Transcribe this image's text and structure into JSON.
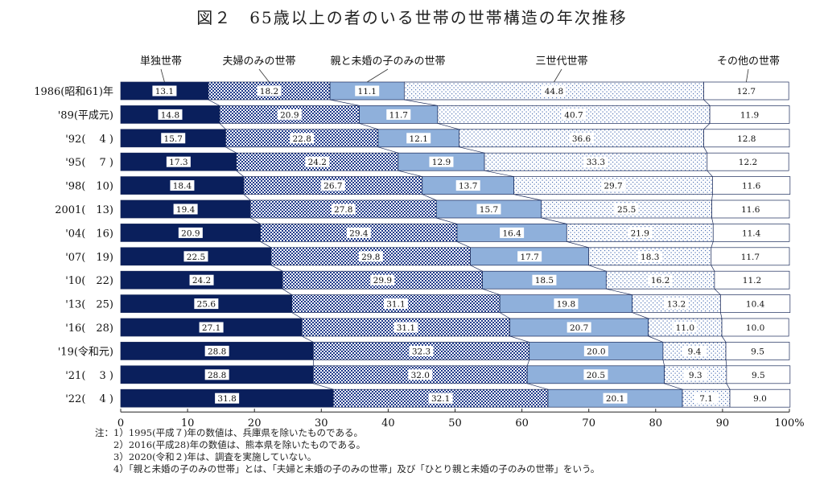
{
  "title": "図２　65歳以上の者のいる世帯の世帯構造の年次推移",
  "chart_data": {
    "type": "bar",
    "stacked": true,
    "orientation": "horizontal",
    "percent_axis_max_label": "100%",
    "x_ticks": [
      "0",
      "10",
      "20",
      "30",
      "40",
      "50",
      "60",
      "70",
      "80",
      "90",
      "100%"
    ],
    "xlim": [
      0,
      100
    ],
    "categories": [
      "1986(昭和61)年",
      "'89(平成元)",
      "'92(　 4 )",
      "'95(　 7 )",
      "'98(　10)",
      "2001(　13)",
      "'04(　16)",
      "'07(　19)",
      "'10(　22)",
      "'13(　25)",
      "'16(　28)",
      "'19(令和元)",
      "'21(　 3 )",
      "'22(　 4 )"
    ],
    "series": [
      {
        "name": "単独世帯",
        "color": "#0a1f5c",
        "pattern": "solid",
        "values": [
          13.1,
          14.8,
          15.7,
          17.3,
          18.4,
          19.4,
          20.9,
          22.5,
          24.2,
          25.6,
          27.1,
          28.8,
          28.8,
          31.8
        ]
      },
      {
        "name": "夫婦のみの世帯",
        "color": "#1f3a8a",
        "pattern": "checker",
        "values": [
          18.2,
          20.9,
          22.8,
          24.2,
          26.7,
          27.8,
          29.4,
          29.8,
          29.9,
          31.1,
          31.1,
          32.3,
          32.0,
          32.1
        ]
      },
      {
        "name": "親と未婚の子のみの世帯",
        "color": "#8fb0db",
        "pattern": "solid",
        "values": [
          11.1,
          11.7,
          12.1,
          12.9,
          13.7,
          15.7,
          16.4,
          17.7,
          18.5,
          19.8,
          20.7,
          20.0,
          20.5,
          20.1
        ]
      },
      {
        "name": "三世代世帯",
        "color": "#4a6fb3",
        "pattern": "dots",
        "values": [
          44.8,
          40.7,
          36.6,
          33.3,
          29.7,
          25.5,
          21.9,
          18.3,
          16.2,
          13.2,
          11.0,
          9.4,
          9.3,
          7.1
        ]
      },
      {
        "name": "その他の世帯",
        "color": "#ffffff",
        "pattern": "none",
        "values": [
          12.7,
          11.9,
          12.8,
          12.2,
          11.6,
          11.6,
          11.4,
          11.7,
          11.2,
          10.4,
          10.0,
          9.5,
          9.5,
          9.0
        ]
      }
    ]
  },
  "notes": [
    "注：1）1995(平成７)年の数値は、兵庫県を除いたものである。",
    "　　2）2016(平成28)年の数値は、熊本県を除いたものである。",
    "　　3）2020(令和２)年は、調査を実施していない。",
    "　　4）「親と未婚の子のみの世帯」とは、「夫婦と未婚の子のみの世帯」及び「ひとり親と未婚の子のみの世帯」をいう。"
  ]
}
